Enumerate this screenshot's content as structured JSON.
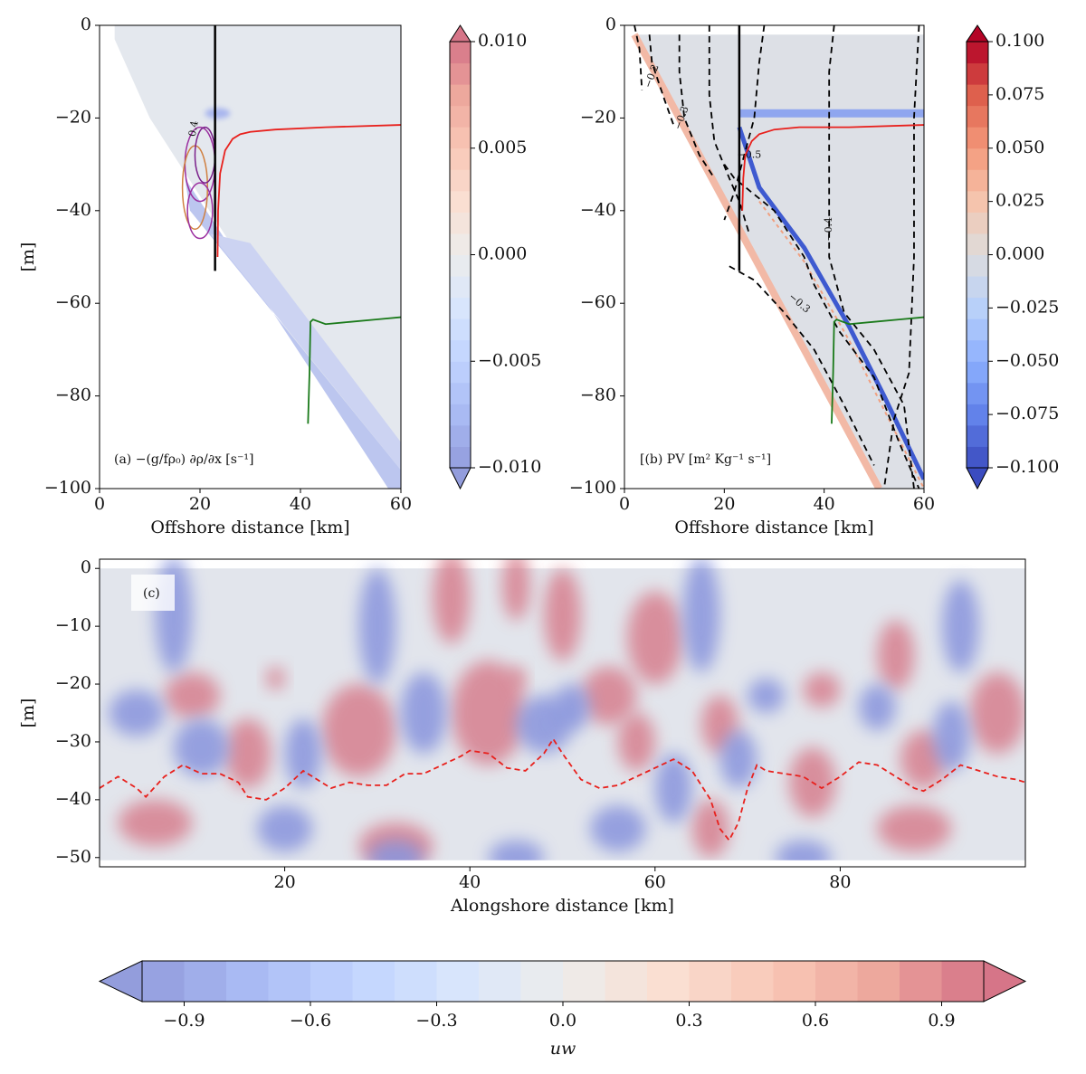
{
  "chart_data": [
    {
      "type": "contour",
      "xlabel": "Offshore distance [km]",
      "ylabel": "[m]",
      "annotation": "(a) −(g/fρ₀) ∂ρ/∂x [s⁻¹]",
      "contour_labels": [
        "0.4"
      ],
      "xlim": [
        0,
        60
      ],
      "ylim": [
        -100,
        0
      ],
      "xticks": [
        0,
        20,
        40,
        60
      ],
      "yticks": [
        0,
        {
          "value": -20,
          "label": "−20"
        },
        {
          "value": -40,
          "label": "−40"
        },
        {
          "value": -60,
          "label": "−60"
        },
        {
          "value": -80,
          "label": "−80"
        },
        {
          "value": -100,
          "label": "−100"
        }
      ],
      "series": [
        {
          "color": "#e8201c",
          "x": [
            23.5,
            23.6,
            24,
            25,
            26.5,
            28,
            30,
            35,
            45,
            60
          ],
          "y": [
            -50,
            -40,
            -32,
            -27,
            -24.5,
            -23.5,
            -23,
            -22.5,
            -22,
            -21.5
          ]
        },
        {
          "color": "#1a7a1a",
          "x": [
            41.5,
            41.8,
            42,
            42.5,
            45,
            50,
            55,
            60
          ],
          "y": [
            -86,
            -75,
            -64,
            -63.5,
            -64.5,
            -64,
            -63.5,
            -63
          ]
        },
        {
          "color": "#000000",
          "x": [
            23,
            23
          ],
          "y": [
            -53,
            0
          ]
        }
      ],
      "colorbar": {
        "lim": [
          -0.01,
          0.01
        ],
        "ticks": [
          {
            "value": 0.01,
            "label": "0.010"
          },
          {
            "value": 0.005,
            "label": "0.005"
          },
          {
            "value": 0,
            "label": "0.000"
          },
          {
            "value": -0.005,
            "label": "−0.005"
          },
          {
            "value": -0.01,
            "label": "−0.010"
          }
        ]
      }
    },
    {
      "type": "contour",
      "xlabel": "Offshore distance [km]",
      "ylabel": "",
      "annotation": "[(b) PV [m² Kg⁻¹ s⁻¹]",
      "contour_labels": [
        "−0.2",
        "−0.3",
        "−0.5",
        "−0.4",
        "−0.3"
      ],
      "xlim": [
        0,
        60
      ],
      "ylim": [
        -100,
        0
      ],
      "xticks": [
        0,
        20,
        40,
        60
      ],
      "yticks": [
        0,
        {
          "value": -20,
          "label": "−20"
        },
        {
          "value": -40,
          "label": "−40"
        },
        {
          "value": -60,
          "label": "−60"
        },
        {
          "value": -80,
          "label": "−80"
        },
        {
          "value": -100,
          "label": "−100"
        }
      ],
      "series": [
        {
          "color": "#e8201c",
          "x": [
            23.6,
            23.8,
            24.2,
            25.5,
            27,
            30,
            35,
            45,
            60
          ],
          "y": [
            -40,
            -33,
            -28,
            -25,
            -23.5,
            -22.5,
            -22,
            -22,
            -21.5
          ]
        },
        {
          "color": "#1a7a1a",
          "x": [
            41.5,
            41.8,
            42,
            42.5,
            45,
            50,
            55,
            60
          ],
          "y": [
            -86,
            -75,
            -64,
            -63.5,
            -64.5,
            -64,
            -63.5,
            -63
          ]
        },
        {
          "color": "#000000",
          "x": [
            23,
            23
          ],
          "y": [
            -53,
            0
          ]
        }
      ],
      "colorbar": {
        "lim": [
          -0.1,
          0.1
        ],
        "ticks": [
          {
            "value": 0.1,
            "label": "0.100"
          },
          {
            "value": 0.075,
            "label": "0.075"
          },
          {
            "value": 0.05,
            "label": "0.050"
          },
          {
            "value": 0.025,
            "label": "0.025"
          },
          {
            "value": 0,
            "label": "0.000"
          },
          {
            "value": -0.025,
            "label": "−0.025"
          },
          {
            "value": -0.05,
            "label": "−0.050"
          },
          {
            "value": -0.075,
            "label": "−0.075"
          },
          {
            "value": -0.1,
            "label": "−0.100"
          }
        ]
      }
    },
    {
      "type": "contour",
      "xlabel": "Alongshore distance [km]",
      "ylabel": "[m]",
      "annotation": "(c)",
      "xlim": [
        0,
        100
      ],
      "ylim": [
        -51.6,
        1.6
      ],
      "xticks": [
        20,
        40,
        60,
        80
      ],
      "yticks": [
        0,
        {
          "value": -10,
          "label": "−10"
        },
        {
          "value": -20,
          "label": "−20"
        },
        {
          "value": -30,
          "label": "−30"
        },
        {
          "value": -40,
          "label": "−40"
        },
        {
          "value": -50,
          "label": "−50"
        }
      ],
      "series": [
        {
          "color": "#e8201c",
          "dashed": true,
          "x": [
            0,
            2,
            4,
            5,
            7,
            9,
            11,
            13,
            15,
            16,
            18,
            20,
            22,
            24,
            25,
            27,
            29,
            31,
            33,
            35,
            37,
            39,
            40,
            42,
            44,
            46,
            48,
            49,
            50,
            52,
            54,
            56,
            58,
            60,
            62,
            64,
            66,
            67,
            68,
            69,
            70,
            71,
            72,
            74,
            76,
            78,
            80,
            82,
            84,
            86,
            88,
            89,
            91,
            93,
            95,
            97,
            99,
            100
          ],
          "y": [
            -38,
            -36,
            -38,
            -39.5,
            -36,
            -34,
            -35.5,
            -35.5,
            -37,
            -39.5,
            -40,
            -38,
            -35,
            -37,
            -38,
            -37,
            -37.5,
            -37.5,
            -35.5,
            -35.5,
            -34,
            -32.5,
            -31.5,
            -32,
            -34.5,
            -35,
            -32,
            -29.5,
            -32,
            -36.5,
            -38,
            -37.5,
            -36,
            -34.5,
            -33,
            -35,
            -40,
            -45,
            -47,
            -44,
            -38,
            -34,
            -35,
            -35.5,
            -36,
            -38,
            -36,
            -33.5,
            -34,
            -36,
            -38,
            -38.5,
            -36.5,
            -34,
            -35,
            -36,
            -36.5,
            -37
          ]
        }
      ],
      "colorbar": {
        "lim": [
          -1,
          1
        ],
        "label": "uw",
        "ticks": [
          {
            "value": -0.9,
            "label": "−0.9"
          },
          {
            "value": -0.6,
            "label": "−0.6"
          },
          {
            "value": -0.3,
            "label": "−0.3"
          },
          {
            "value": 0,
            "label": "0.0"
          },
          {
            "value": 0.3,
            "label": "0.3"
          },
          {
            "value": 0.6,
            "label": "0.6"
          },
          {
            "value": 0.9,
            "label": "0.9"
          }
        ]
      }
    }
  ]
}
